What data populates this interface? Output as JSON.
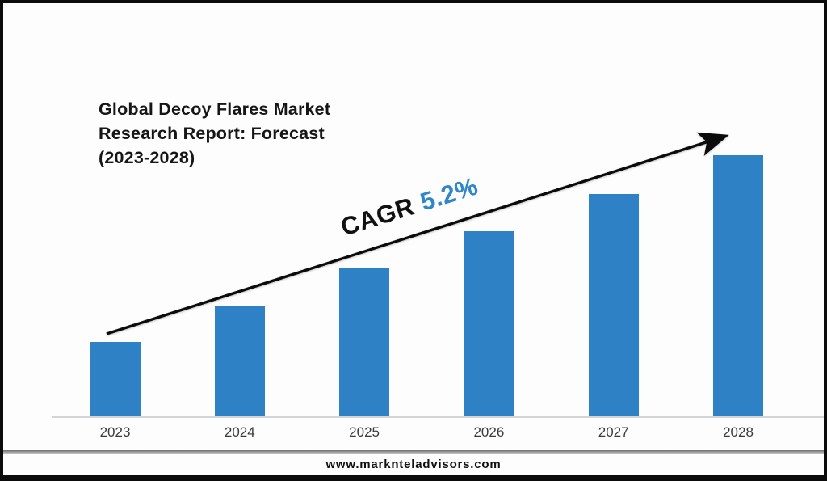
{
  "page": {
    "title": "Global Decoy Flares Market\nResearch Report: Forecast\n(2023-2028)",
    "footer_url": "www.marknteladvisors.com"
  },
  "annotation": {
    "cagr_label": "CAGR",
    "cagr_value": "5.2%",
    "value_color": "#2F86C9"
  },
  "chart_data": {
    "type": "bar",
    "title": "Global Decoy Flares Market Research Report: Forecast (2023-2028)",
    "categories": [
      "2023",
      "2024",
      "2025",
      "2026",
      "2027",
      "2028"
    ],
    "values": [
      93,
      137,
      184,
      230,
      276,
      324
    ],
    "values_unit": "relative bar heights in px (chart shows no y-axis, gridlines or data labels)",
    "cagr_percent": 5.2,
    "annotation": "CAGR 5.2%",
    "bar_color": "#2E81C4",
    "xlabel": "",
    "ylabel": "",
    "grid": false,
    "legend": false,
    "trend_line": "black upward arrow from above 2023 bar to above 2028 bar"
  }
}
